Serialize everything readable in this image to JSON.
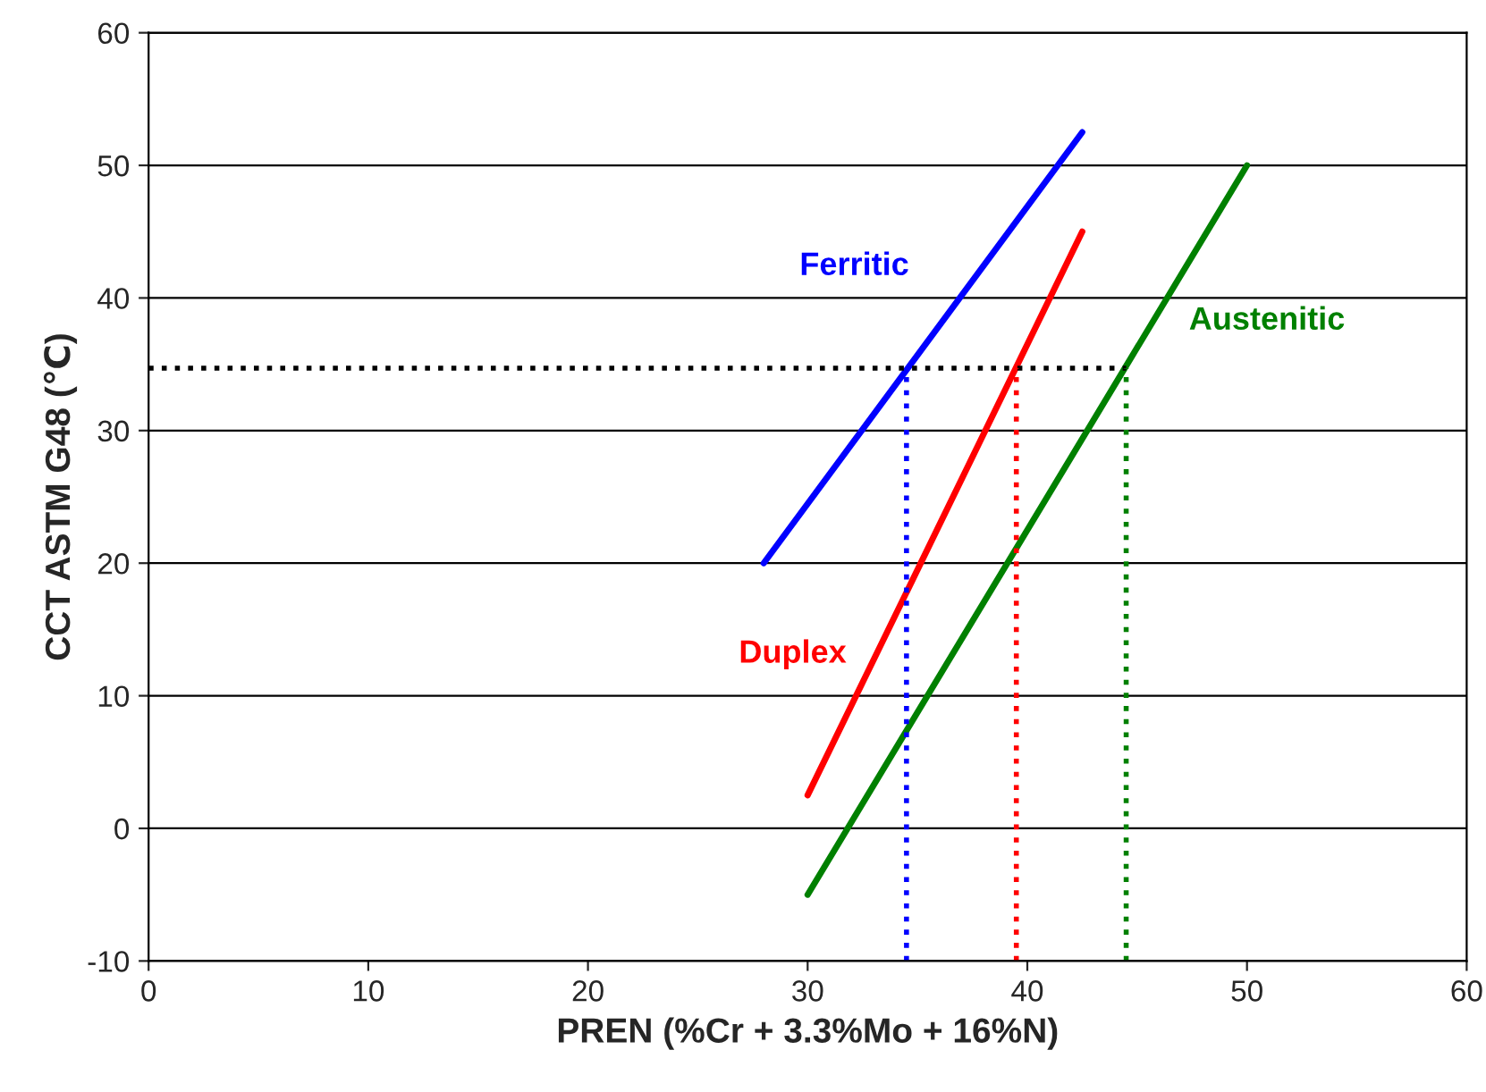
{
  "chart_data": {
    "type": "line",
    "xlabel": "PREN (%Cr + 3.3%Mo + 16%N)",
    "ylabel": "CCT ASTM G48 (℃)",
    "xlim": [
      0,
      60
    ],
    "xticks": [
      0,
      10,
      20,
      30,
      40,
      50,
      60
    ],
    "ylim": [
      -10,
      60
    ],
    "yticks": [
      -10,
      0,
      10,
      20,
      30,
      40,
      50,
      60
    ],
    "grid": "y",
    "legend": false,
    "series": [
      {
        "name": "Ferritic",
        "color": "#0000ff",
        "x": [
          28,
          42.5
        ],
        "values": [
          20,
          52.5
        ]
      },
      {
        "name": "Duplex",
        "color": "#ff0000",
        "x": [
          30,
          42.5
        ],
        "values": [
          2.5,
          45
        ]
      },
      {
        "name": "Austenitic",
        "color": "#008000",
        "x": [
          30,
          50
        ],
        "values": [
          -5,
          50
        ]
      },
      {
        "color": "#000000",
        "x": [
          0,
          44.5
        ],
        "values": [
          34.7,
          34.7
        ],
        "line_style": "dotted"
      },
      {
        "color": "#0000ff",
        "x": [
          34.5,
          34.5
        ],
        "values": [
          -10,
          34.7
        ],
        "line_style": "dotted"
      },
      {
        "color": "#ff0000",
        "x": [
          39.5,
          39.5
        ],
        "values": [
          -10,
          34.7
        ],
        "line_style": "dotted"
      },
      {
        "color": "#008000",
        "x": [
          44.5,
          44.5
        ],
        "values": [
          -10,
          34.7
        ],
        "line_style": "dotted"
      }
    ]
  }
}
